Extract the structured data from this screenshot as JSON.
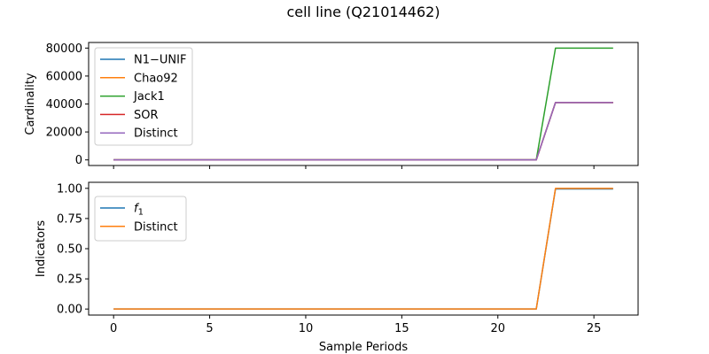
{
  "title": "cell line (Q21014462)",
  "chart_data": [
    {
      "type": "line",
      "title": "",
      "xlabel": "",
      "ylabel": "Cardinality",
      "xlim": [
        -1.3,
        27.3
      ],
      "ylim": [
        -4000,
        84000
      ],
      "xticks": [
        0,
        5,
        10,
        15,
        20,
        25
      ],
      "xtick_labels": [],
      "yticks": [
        0,
        20000,
        40000,
        60000,
        80000
      ],
      "ytick_labels": [
        "0",
        "20000",
        "40000",
        "60000",
        "80000"
      ],
      "legend_position": "upper-left",
      "x": [
        0,
        1,
        2,
        3,
        4,
        5,
        6,
        7,
        8,
        9,
        10,
        11,
        12,
        13,
        14,
        15,
        16,
        17,
        18,
        19,
        20,
        21,
        22,
        23,
        24,
        25,
        26
      ],
      "series": [
        {
          "name": "N1−UNIF",
          "color": "#1f77b4",
          "values": [
            0,
            0,
            0,
            0,
            0,
            0,
            0,
            0,
            0,
            0,
            0,
            0,
            0,
            0,
            0,
            0,
            0,
            0,
            0,
            0,
            0,
            0,
            0,
            41000,
            41000,
            41000,
            41000
          ]
        },
        {
          "name": "Chao92",
          "color": "#ff7f0e",
          "values": [
            0,
            0,
            0,
            0,
            0,
            0,
            0,
            0,
            0,
            0,
            0,
            0,
            0,
            0,
            0,
            0,
            0,
            0,
            0,
            0,
            0,
            0,
            0,
            41000,
            41000,
            41000,
            41000
          ]
        },
        {
          "name": "Jack1",
          "color": "#2ca02c",
          "values": [
            0,
            0,
            0,
            0,
            0,
            0,
            0,
            0,
            0,
            0,
            0,
            0,
            0,
            0,
            0,
            0,
            0,
            0,
            0,
            0,
            0,
            0,
            0,
            80000,
            80000,
            80000,
            80000
          ]
        },
        {
          "name": "SOR",
          "color": "#d62728",
          "values": [
            0,
            0,
            0,
            0,
            0,
            0,
            0,
            0,
            0,
            0,
            0,
            0,
            0,
            0,
            0,
            0,
            0,
            0,
            0,
            0,
            0,
            0,
            0,
            41000,
            41000,
            41000,
            41000
          ]
        },
        {
          "name": "Distinct",
          "color": "#9467bd",
          "values": [
            0,
            0,
            0,
            0,
            0,
            0,
            0,
            0,
            0,
            0,
            0,
            0,
            0,
            0,
            0,
            0,
            0,
            0,
            0,
            0,
            0,
            0,
            0,
            41000,
            41000,
            41000,
            41000
          ]
        }
      ]
    },
    {
      "type": "line",
      "title": "",
      "xlabel": "Sample Periods",
      "ylabel": "Indicators",
      "xlim": [
        -1.3,
        27.3
      ],
      "ylim": [
        -0.05,
        1.05
      ],
      "xticks": [
        0,
        5,
        10,
        15,
        20,
        25
      ],
      "xtick_labels": [
        "0",
        "5",
        "10",
        "15",
        "20",
        "25"
      ],
      "yticks": [
        0,
        0.25,
        0.5,
        0.75,
        1.0
      ],
      "ytick_labels": [
        "0.00",
        "0.25",
        "0.50",
        "0.75",
        "1.00"
      ],
      "legend_position": "upper-left",
      "x": [
        0,
        1,
        2,
        3,
        4,
        5,
        6,
        7,
        8,
        9,
        10,
        11,
        12,
        13,
        14,
        15,
        16,
        17,
        18,
        19,
        20,
        21,
        22,
        23,
        24,
        25,
        26
      ],
      "series": [
        {
          "name": "f",
          "name_subscript": "1",
          "color": "#1f77b4",
          "values": [
            0,
            0,
            0,
            0,
            0,
            0,
            0,
            0,
            0,
            0,
            0,
            0,
            0,
            0,
            0,
            0,
            0,
            0,
            0,
            0,
            0,
            0,
            0,
            0.995,
            0.995,
            0.995,
            0.995
          ]
        },
        {
          "name": "Distinct",
          "color": "#ff7f0e",
          "values": [
            0,
            0,
            0,
            0,
            0,
            0,
            0,
            0,
            0,
            0,
            0,
            0,
            0,
            0,
            0,
            0,
            0,
            0,
            0,
            0,
            0,
            0,
            0,
            1.0,
            1.0,
            1.0,
            1.0
          ]
        }
      ]
    }
  ]
}
